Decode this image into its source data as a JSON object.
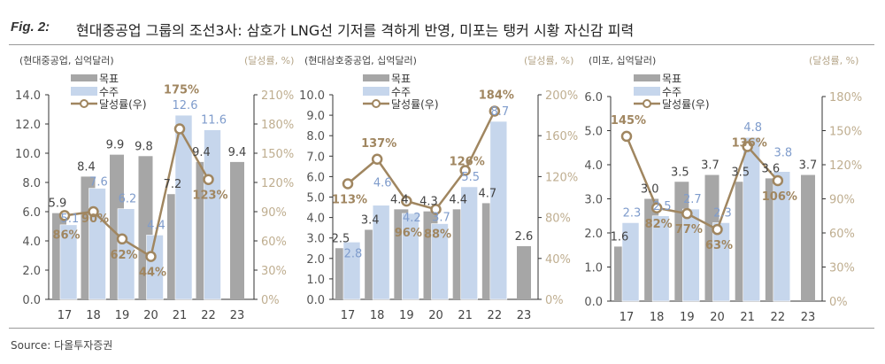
{
  "header": {
    "fig_label": "Fig. 2:",
    "title": "현대중공업 그룹의 조선3사: 삼호가 LNG선 기저를 격하게 반영, 미포는 탱커 시황 자신감 피력"
  },
  "source": "Source: 다올투자증권",
  "colors": {
    "target": "#a6a6a6",
    "orders": "#c6d6ec",
    "rate": "#a08660",
    "orders_label": "#7f9ccc",
    "right_axis": "#bfae90"
  },
  "legend": {
    "target": "목표",
    "orders": "수주",
    "rate": "달성률(우)"
  },
  "chart_data": [
    {
      "type": "bar+line",
      "left_unit": "(현대중공업, 십억달러)",
      "right_unit": "(달성률, %)",
      "categories": [
        "17",
        "18",
        "19",
        "20",
        "21",
        "22",
        "23"
      ],
      "ylim": [
        0,
        14
      ],
      "yticks": [
        "0.0",
        "2.0",
        "4.0",
        "6.0",
        "8.0",
        "10.0",
        "12.0",
        "14.0"
      ],
      "y2lim": [
        0,
        210
      ],
      "y2ticks": [
        "0%",
        "30%",
        "60%",
        "90%",
        "120%",
        "150%",
        "180%",
        "210%"
      ],
      "series": [
        {
          "name": "목표",
          "kind": "bar",
          "values": [
            5.9,
            8.4,
            9.9,
            9.8,
            7.2,
            9.4,
            9.4
          ],
          "labels": [
            "5.9",
            "8.4",
            "9.9",
            "9.8",
            "7.2",
            "9.4",
            "9.4"
          ]
        },
        {
          "name": "수주",
          "kind": "bar",
          "values": [
            5.1,
            7.6,
            6.2,
            4.4,
            12.6,
            11.6,
            null
          ],
          "labels": [
            "5.1",
            "7.6",
            "6.2",
            "4.4",
            "12.6",
            "11.6",
            ""
          ]
        },
        {
          "name": "달성률(우)",
          "kind": "line",
          "axis": "right",
          "values": [
            86,
            90,
            62,
            44,
            175,
            123,
            null
          ],
          "labels": [
            "86%",
            "90%",
            "62%",
            "44%",
            "175%",
            "123%",
            ""
          ]
        }
      ]
    },
    {
      "type": "bar+line",
      "left_unit": "(현대삼호중공업, 십억달러)",
      "right_unit": "(달성률, %)",
      "categories": [
        "17",
        "18",
        "19",
        "20",
        "21",
        "22",
        "23"
      ],
      "ylim": [
        0,
        10
      ],
      "yticks": [
        "0.0",
        "1.0",
        "2.0",
        "3.0",
        "4.0",
        "5.0",
        "6.0",
        "7.0",
        "8.0",
        "9.0",
        "10.0"
      ],
      "y2lim": [
        0,
        200
      ],
      "y2ticks": [
        "0%",
        "40%",
        "80%",
        "120%",
        "160%",
        "200%"
      ],
      "series": [
        {
          "name": "목표",
          "kind": "bar",
          "values": [
            2.5,
            3.4,
            4.4,
            4.3,
            4.4,
            4.7,
            2.6
          ],
          "labels": [
            "2.5",
            "3.4",
            "4.4",
            "4.3",
            "4.4",
            "4.7",
            "2.6"
          ]
        },
        {
          "name": "수주",
          "kind": "bar",
          "values": [
            2.8,
            4.6,
            4.2,
            3.7,
            5.5,
            8.7,
            null
          ],
          "labels": [
            "2.8",
            "4.6",
            "4.2",
            "3.7",
            "5.5",
            "8.7",
            ""
          ]
        },
        {
          "name": "달성률(우)",
          "kind": "line",
          "axis": "right",
          "values": [
            113,
            137,
            96,
            88,
            126,
            184,
            null
          ],
          "labels": [
            "113%",
            "137%",
            "96%",
            "88%",
            "126%",
            "184%",
            ""
          ]
        }
      ]
    },
    {
      "type": "bar+line",
      "left_unit": "(미포, 십억달러)",
      "right_unit": "(달성률, %)",
      "categories": [
        "17",
        "18",
        "19",
        "20",
        "21",
        "22",
        "23"
      ],
      "ylim": [
        0,
        6
      ],
      "yticks": [
        "0.0",
        "1.0",
        "2.0",
        "3.0",
        "4.0",
        "5.0",
        "6.0"
      ],
      "y2lim": [
        0,
        180
      ],
      "y2ticks": [
        "0%",
        "30%",
        "60%",
        "90%",
        "120%",
        "150%",
        "180%"
      ],
      "series": [
        {
          "name": "목표",
          "kind": "bar",
          "values": [
            1.6,
            3.0,
            3.5,
            3.7,
            3.5,
            3.6,
            3.7
          ],
          "labels": [
            "1.6",
            "3.0",
            "3.5",
            "3.7",
            "3.5",
            "3.6",
            "3.7"
          ]
        },
        {
          "name": "수주",
          "kind": "bar",
          "values": [
            2.3,
            2.5,
            2.7,
            2.3,
            4.8,
            3.8,
            null
          ],
          "labels": [
            "2.3",
            "2.5",
            "2.7",
            "2.3",
            "4.8",
            "3.8",
            ""
          ]
        },
        {
          "name": "달성률(우)",
          "kind": "line",
          "axis": "right",
          "values": [
            145,
            82,
            77,
            63,
            136,
            106,
            null
          ],
          "labels": [
            "145%",
            "82%",
            "77%",
            "63%",
            "136%",
            "106%",
            ""
          ]
        }
      ]
    }
  ]
}
